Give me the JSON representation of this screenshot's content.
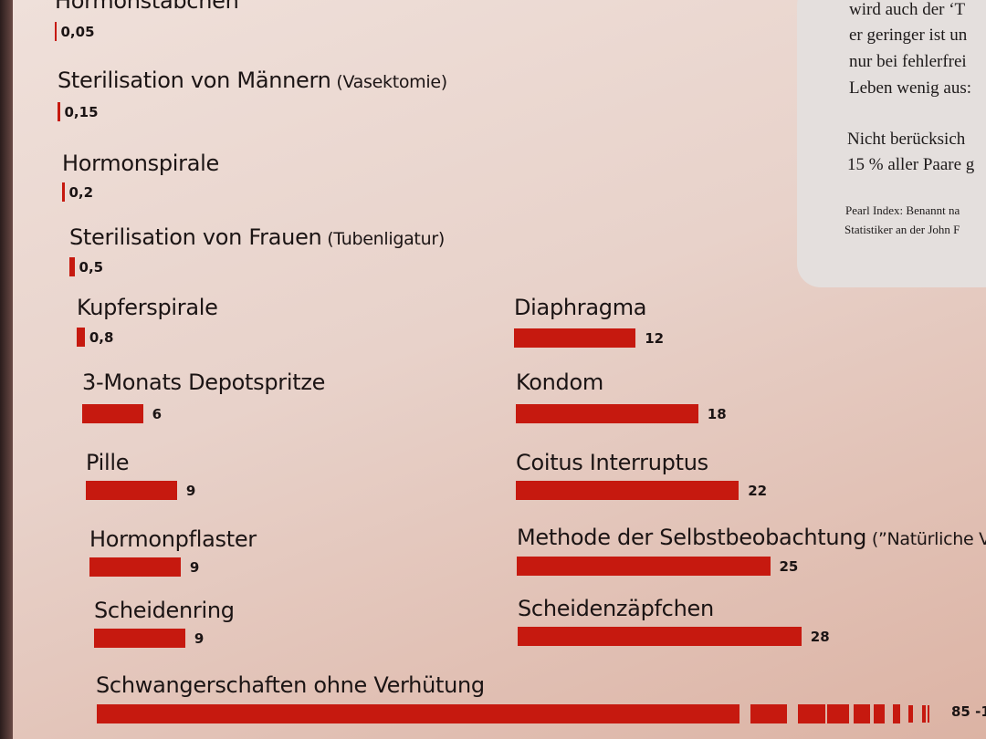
{
  "panel": {
    "lines": [
      "wird auch der ‘T",
      "er geringer ist un",
      "nur bei fehlerfrei",
      "Leben wenig aus:",
      "Nicht berücksich",
      "15 % aller Paare g"
    ],
    "footnote": [
      "Pearl Index: Benannt na",
      "Statistiker an der John F"
    ]
  },
  "chart_data": {
    "type": "bar",
    "orientation": "horizontal",
    "bar_color": "#c6190f",
    "left_column": [
      {
        "label": "Hormonstäbchen",
        "sub": "",
        "value": 0.05,
        "value_label": "0,05"
      },
      {
        "label": "Sterilisation von Männern",
        "sub": "(Vasektomie)",
        "value": 0.15,
        "value_label": "0,15"
      },
      {
        "label": "Hormonspirale",
        "sub": "",
        "value": 0.2,
        "value_label": "0,2"
      },
      {
        "label": "Sterilisation von Frauen",
        "sub": "(Tubenligatur)",
        "value": 0.5,
        "value_label": "0,5"
      },
      {
        "label": "Kupferspirale",
        "sub": "",
        "value": 0.8,
        "value_label": "0,8"
      },
      {
        "label": "3-Monats Depotspritze",
        "sub": "",
        "value": 6,
        "value_label": "6"
      },
      {
        "label": "Pille",
        "sub": "",
        "value": 9,
        "value_label": "9"
      },
      {
        "label": "Hormonpflaster",
        "sub": "",
        "value": 9,
        "value_label": "9"
      },
      {
        "label": "Scheidenring",
        "sub": "",
        "value": 9,
        "value_label": "9"
      }
    ],
    "right_column": [
      {
        "label": "Diaphragma",
        "sub": "",
        "value": 12,
        "value_label": "12"
      },
      {
        "label": "Kondom",
        "sub": "",
        "value": 18,
        "value_label": "18"
      },
      {
        "label": "Coitus Interruptus",
        "sub": "",
        "value": 22,
        "value_label": "22"
      },
      {
        "label": "Methode der Selbstbeobachtung",
        "sub": "(”Natürliche V",
        "value": 25,
        "value_label": "25"
      },
      {
        "label": "Scheidenzäpfchen",
        "sub": "",
        "value": 28,
        "value_label": "28"
      }
    ],
    "bottom": {
      "label": "Schwangerschaften ohne Verhütung",
      "value": 85,
      "value_label": "85 -1"
    }
  }
}
